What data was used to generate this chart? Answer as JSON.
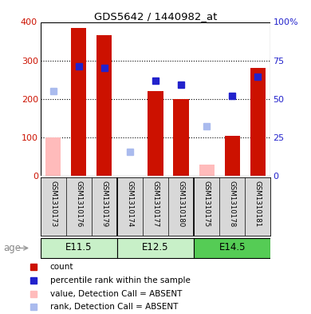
{
  "title": "GDS5642 / 1440982_at",
  "samples": [
    "GSM1310173",
    "GSM1310176",
    "GSM1310179",
    "GSM1310174",
    "GSM1310177",
    "GSM1310180",
    "GSM1310175",
    "GSM1310178",
    "GSM1310181"
  ],
  "age_groups": [
    {
      "label": "E11.5",
      "start": 0,
      "end": 3
    },
    {
      "label": "E12.5",
      "start": 3,
      "end": 6
    },
    {
      "label": "E14.5",
      "start": 6,
      "end": 9
    }
  ],
  "count_values": [
    null,
    385,
    365,
    null,
    220,
    200,
    null,
    105,
    280
  ],
  "count_absent": [
    100,
    null,
    null,
    null,
    null,
    null,
    30,
    null,
    null
  ],
  "rank_values": [
    null,
    285,
    280,
    null,
    248,
    237,
    null,
    208,
    258
  ],
  "rank_absent": [
    220,
    null,
    null,
    63,
    null,
    null,
    128,
    null,
    null
  ],
  "bar_color": "#cc1100",
  "bar_absent_color": "#ffbbbb",
  "rank_color": "#2222cc",
  "rank_absent_color": "#aabbee",
  "ylim": [
    0,
    400
  ],
  "y2lim": [
    0,
    100
  ],
  "yticks": [
    0,
    100,
    200,
    300,
    400
  ],
  "y2ticks": [
    0,
    25,
    50,
    75,
    100
  ],
  "y2tick_labels": [
    "0",
    "25",
    "50",
    "75",
    "100%"
  ],
  "y_left_top_label": "400",
  "y_right_top_label": "100%",
  "bg_color": "#ffffff",
  "age_label": "age",
  "legend_items": [
    {
      "label": "count",
      "color": "#cc1100"
    },
    {
      "label": "percentile rank within the sample",
      "color": "#2222cc"
    },
    {
      "label": "value, Detection Call = ABSENT",
      "color": "#ffbbbb"
    },
    {
      "label": "rank, Detection Call = ABSENT",
      "color": "#aabbee"
    }
  ]
}
